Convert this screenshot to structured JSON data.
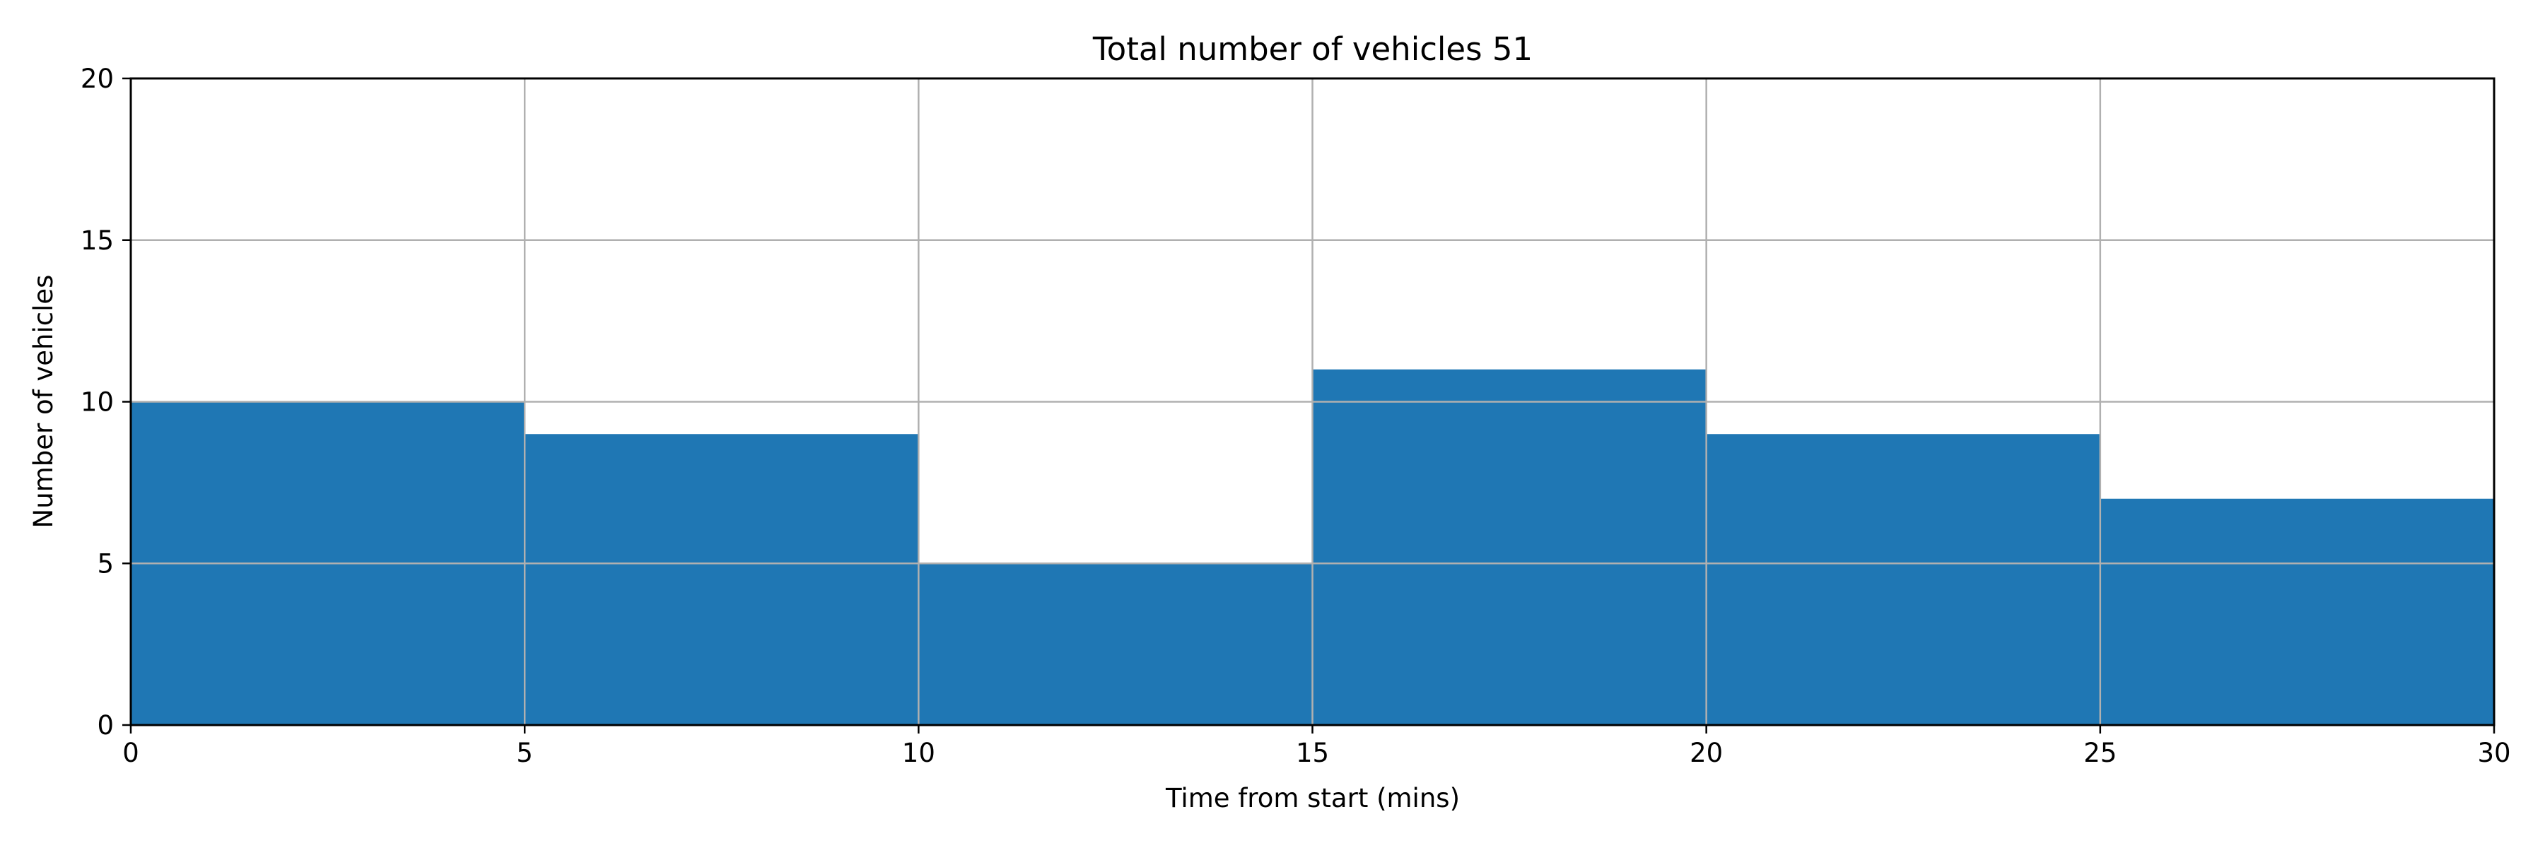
{
  "chart_data": {
    "type": "bar",
    "title": "Total number of vehicles  51",
    "xlabel": "Time from start (mins)",
    "ylabel": "Number of vehicles",
    "bins": [
      {
        "start": 0,
        "end": 5,
        "value": 10
      },
      {
        "start": 5,
        "end": 10,
        "value": 9
      },
      {
        "start": 10,
        "end": 15,
        "value": 5
      },
      {
        "start": 15,
        "end": 20,
        "value": 11
      },
      {
        "start": 20,
        "end": 25,
        "value": 9
      },
      {
        "start": 25,
        "end": 30,
        "value": 7
      }
    ],
    "xlim": [
      0,
      30
    ],
    "ylim": [
      0,
      20
    ],
    "xticks": [
      0,
      5,
      10,
      15,
      20,
      25,
      30
    ],
    "yticks": [
      0,
      5,
      10,
      15,
      20
    ],
    "grid": true,
    "colors": {
      "bar": "#1f77b4",
      "grid": "#b0b0b0",
      "axis": "#000000"
    }
  }
}
